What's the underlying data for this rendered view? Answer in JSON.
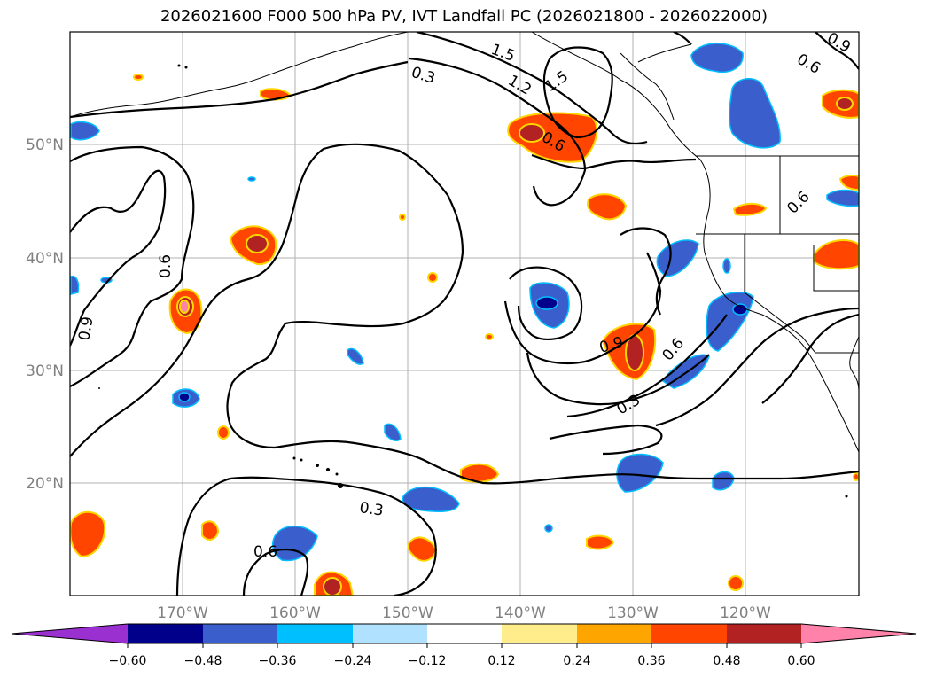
{
  "title": "2026021600 F000 500 hPa PV, IVT Landfall PC (2026021800 - 2026022000)",
  "map": {
    "lat_labels": [
      "50°N",
      "40°N",
      "30°N",
      "20°N"
    ],
    "lon_labels": [
      "170°W",
      "160°W",
      "150°W",
      "140°W",
      "130°W",
      "120°W"
    ],
    "contour_labels": [
      "1.5",
      "0.3",
      "1.2",
      "1.5",
      "0.6",
      "0.9",
      "0.6",
      "0.6",
      "0.9",
      "0.6",
      "0.9",
      "0.3",
      "0.6",
      "0.3",
      "0.6"
    ]
  },
  "colorbar": {
    "colors": [
      "#9b30d0",
      "#00008b",
      "#3a5fcd",
      "#00bfff",
      "#b0e2ff",
      "#ffffff",
      "#ffec8b",
      "#ffa500",
      "#ff4500",
      "#b22222",
      "#ff82ab"
    ],
    "tick_labels": [
      "−0.60",
      "−0.48",
      "−0.36",
      "−0.24",
      "−0.12",
      "0.12",
      "0.24",
      "0.36",
      "0.48",
      "0.60"
    ]
  }
}
